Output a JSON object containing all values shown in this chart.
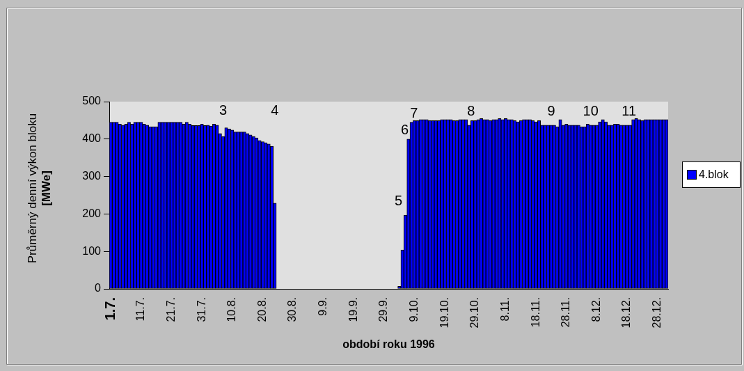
{
  "chart_data": {
    "type": "bar",
    "xlabel": "období roku 1996",
    "ylabel": "Průměrný denní výkon bloku [MWe]",
    "categories": [
      "1.7.",
      null,
      null,
      null,
      null,
      null,
      null,
      null,
      null,
      null,
      "11.7.",
      null,
      null,
      null,
      null,
      null,
      null,
      null,
      null,
      null,
      "21.7.",
      null,
      null,
      null,
      null,
      null,
      null,
      null,
      null,
      null,
      "31.7.",
      null,
      null,
      null,
      null,
      null,
      null,
      null,
      null,
      null,
      "10.8.",
      null,
      null,
      null,
      null,
      null,
      null,
      null,
      null,
      null,
      "20.8.",
      null,
      null,
      null,
      null,
      null,
      null,
      null,
      null,
      null,
      "30.8.",
      null,
      null,
      null,
      null,
      null,
      null,
      null,
      null,
      null,
      "9.9.",
      null,
      null,
      null,
      null,
      null,
      null,
      null,
      null,
      null,
      "19.9.",
      null,
      null,
      null,
      null,
      null,
      null,
      null,
      null,
      null,
      "29.9.",
      null,
      null,
      null,
      null,
      null,
      null,
      null,
      null,
      null,
      "9.10.",
      null,
      null,
      null,
      null,
      null,
      null,
      null,
      null,
      null,
      "19.10.",
      null,
      null,
      null,
      null,
      null,
      null,
      null,
      null,
      null,
      "29.10.",
      null,
      null,
      null,
      null,
      null,
      null,
      null,
      null,
      null,
      "8.11.",
      null,
      null,
      null,
      null,
      null,
      null,
      null,
      null,
      null,
      "18.11.",
      null,
      null,
      null,
      null,
      null,
      null,
      null,
      null,
      null,
      "28.11.",
      null,
      null,
      null,
      null,
      null,
      null,
      null,
      null,
      null,
      "8.12.",
      null,
      null,
      null,
      null,
      null,
      null,
      null,
      null,
      null,
      "18.12.",
      null,
      null,
      null,
      null,
      null,
      null,
      null,
      null,
      null,
      "28.12.",
      null,
      null,
      null
    ],
    "series": [
      {
        "name": "4.blok",
        "color": "#0000ff",
        "values": [
          445,
          445,
          445,
          440,
          437,
          440,
          445,
          440,
          445,
          445,
          445,
          440,
          437,
          433,
          433,
          433,
          445,
          445,
          445,
          445,
          445,
          445,
          445,
          445,
          440,
          445,
          440,
          436,
          436,
          436,
          440,
          436,
          437,
          435,
          440,
          437,
          415,
          407,
          430,
          427,
          424,
          419,
          419,
          419,
          419,
          415,
          411,
          407,
          403,
          396,
          393,
          390,
          387,
          381,
          229,
          0,
          0,
          0,
          0,
          0,
          0,
          0,
          0,
          0,
          0,
          0,
          0,
          0,
          0,
          0,
          0,
          0,
          0,
          0,
          0,
          0,
          0,
          0,
          0,
          0,
          0,
          0,
          0,
          0,
          0,
          0,
          0,
          0,
          0,
          0,
          0,
          0,
          0,
          0,
          0,
          7,
          104,
          197,
          400,
          445,
          449,
          449,
          452,
          452,
          452,
          449,
          449,
          449,
          449,
          452,
          452,
          452,
          452,
          449,
          449,
          452,
          452,
          452,
          437,
          449,
          449,
          452,
          455,
          452,
          452,
          449,
          452,
          452,
          455,
          452,
          455,
          452,
          452,
          449,
          446,
          449,
          452,
          452,
          452,
          449,
          446,
          449,
          437,
          437,
          437,
          437,
          437,
          433,
          452,
          437,
          440,
          437,
          437,
          437,
          437,
          433,
          433,
          440,
          437,
          437,
          437,
          446,
          452,
          446,
          437,
          437,
          440,
          440,
          437,
          437,
          437,
          437,
          452,
          455,
          452,
          449,
          452,
          452,
          452,
          452,
          452,
          452,
          452,
          452
        ]
      }
    ],
    "ylim": [
      0,
      500
    ],
    "yticks": [
      0,
      100,
      200,
      300,
      400,
      500
    ],
    "grid": false,
    "legend": "right",
    "annotations": [
      "3",
      "4",
      "5",
      "6",
      "7",
      "8",
      "9",
      "10",
      "11"
    ]
  }
}
